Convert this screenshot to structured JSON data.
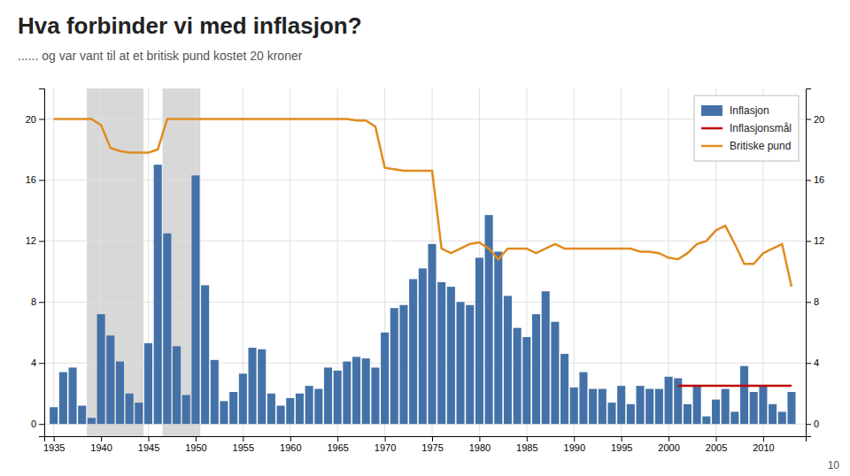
{
  "chart_data": {
    "type": "bar",
    "title": "Hva forbinder vi med inflasjon?",
    "subtitle": "...... og var vant til at et britisk pund kostet 20 kroner",
    "annotations": [
      "10"
    ],
    "x": [
      1935,
      1936,
      1937,
      1938,
      1939,
      1940,
      1941,
      1942,
      1943,
      1944,
      1945,
      1946,
      1947,
      1948,
      1949,
      1950,
      1951,
      1952,
      1953,
      1954,
      1955,
      1956,
      1957,
      1958,
      1959,
      1960,
      1961,
      1962,
      1963,
      1964,
      1965,
      1966,
      1967,
      1968,
      1969,
      1970,
      1971,
      1972,
      1973,
      1974,
      1975,
      1976,
      1977,
      1978,
      1979,
      1980,
      1981,
      1982,
      1983,
      1984,
      1985,
      1986,
      1987,
      1988,
      1989,
      1990,
      1991,
      1992,
      1993,
      1994,
      1995,
      1996,
      1997,
      1998,
      1999,
      2000,
      2001,
      2002,
      2003,
      2004,
      2005,
      2006,
      2007,
      2008,
      2009,
      2010,
      2011,
      2012,
      2013
    ],
    "series": [
      {
        "name": "Inflasjon",
        "type": "bar",
        "color": "#4472a8",
        "values": [
          1.1,
          3.4,
          3.7,
          1.2,
          0.4,
          7.2,
          5.8,
          4.1,
          2.0,
          1.4,
          5.3,
          17.0,
          12.5,
          5.1,
          1.9,
          16.3,
          9.1,
          4.2,
          1.5,
          2.1,
          3.3,
          5.0,
          4.9,
          2.0,
          1.2,
          1.7,
          2.0,
          2.5,
          2.3,
          3.7,
          3.5,
          4.1,
          4.4,
          4.3,
          3.7,
          6.0,
          7.6,
          7.8,
          9.5,
          10.2,
          11.8,
          9.3,
          9.0,
          8.0,
          7.8,
          10.9,
          13.7,
          11.3,
          8.4,
          6.3,
          5.7,
          7.2,
          8.7,
          6.7,
          4.6,
          2.4,
          3.4,
          2.3,
          2.3,
          1.4,
          2.5,
          1.3,
          2.5,
          2.3,
          2.3,
          3.1,
          3.0,
          1.3,
          2.5,
          0.5,
          1.6,
          2.3,
          0.8,
          3.8,
          2.1,
          2.5,
          1.3,
          0.8,
          2.1
        ]
      },
      {
        "name": "Inflasjonsmål",
        "type": "line",
        "color": "#c00000",
        "x": [
          2001,
          2013
        ],
        "values": [
          2.5,
          2.5
        ]
      },
      {
        "name": "Britiske pund",
        "type": "line",
        "color": "#e08c20",
        "values": [
          20.0,
          20.0,
          20.0,
          20.0,
          20.0,
          19.6,
          18.1,
          17.9,
          17.8,
          17.8,
          17.8,
          18.0,
          20.0,
          20.0,
          20.0,
          20.0,
          20.0,
          20.0,
          20.0,
          20.0,
          20.0,
          20.0,
          20.0,
          20.0,
          20.0,
          20.0,
          20.0,
          20.0,
          20.0,
          20.0,
          20.0,
          20.0,
          19.9,
          19.9,
          19.5,
          16.8,
          16.7,
          16.6,
          16.6,
          16.6,
          16.6,
          11.5,
          11.2,
          11.5,
          11.8,
          11.9,
          11.5,
          10.8,
          11.5,
          11.5,
          11.5,
          11.2,
          11.5,
          11.8,
          11.5,
          11.5,
          11.5,
          11.5,
          11.5,
          11.5,
          11.5,
          11.5,
          11.3,
          11.3,
          11.2,
          10.9,
          10.8,
          11.2,
          11.8,
          12.0,
          12.7,
          13.0,
          11.8,
          10.5,
          10.5,
          11.2,
          11.5,
          11.8,
          9.0
        ]
      }
    ],
    "shaded_ranges": {
      "color": "#d8d8d8",
      "ranges": [
        [
          1938.5,
          1944.5
        ],
        [
          1946.5,
          1950.5
        ]
      ]
    },
    "xlim": [
      1934.0,
      2014.5
    ],
    "xticks": [
      1935,
      1940,
      1945,
      1950,
      1955,
      1960,
      1965,
      1970,
      1975,
      1980,
      1985,
      1990,
      1995,
      2000,
      2005,
      2010
    ],
    "ylim": [
      -0.8,
      22
    ],
    "yticks": [
      0,
      4,
      8,
      12,
      16,
      20
    ],
    "y2lim": [
      -0.8,
      22
    ],
    "y2ticks": [
      0,
      4,
      8,
      12,
      16,
      20
    ],
    "grid": true,
    "legend": "upper right"
  }
}
